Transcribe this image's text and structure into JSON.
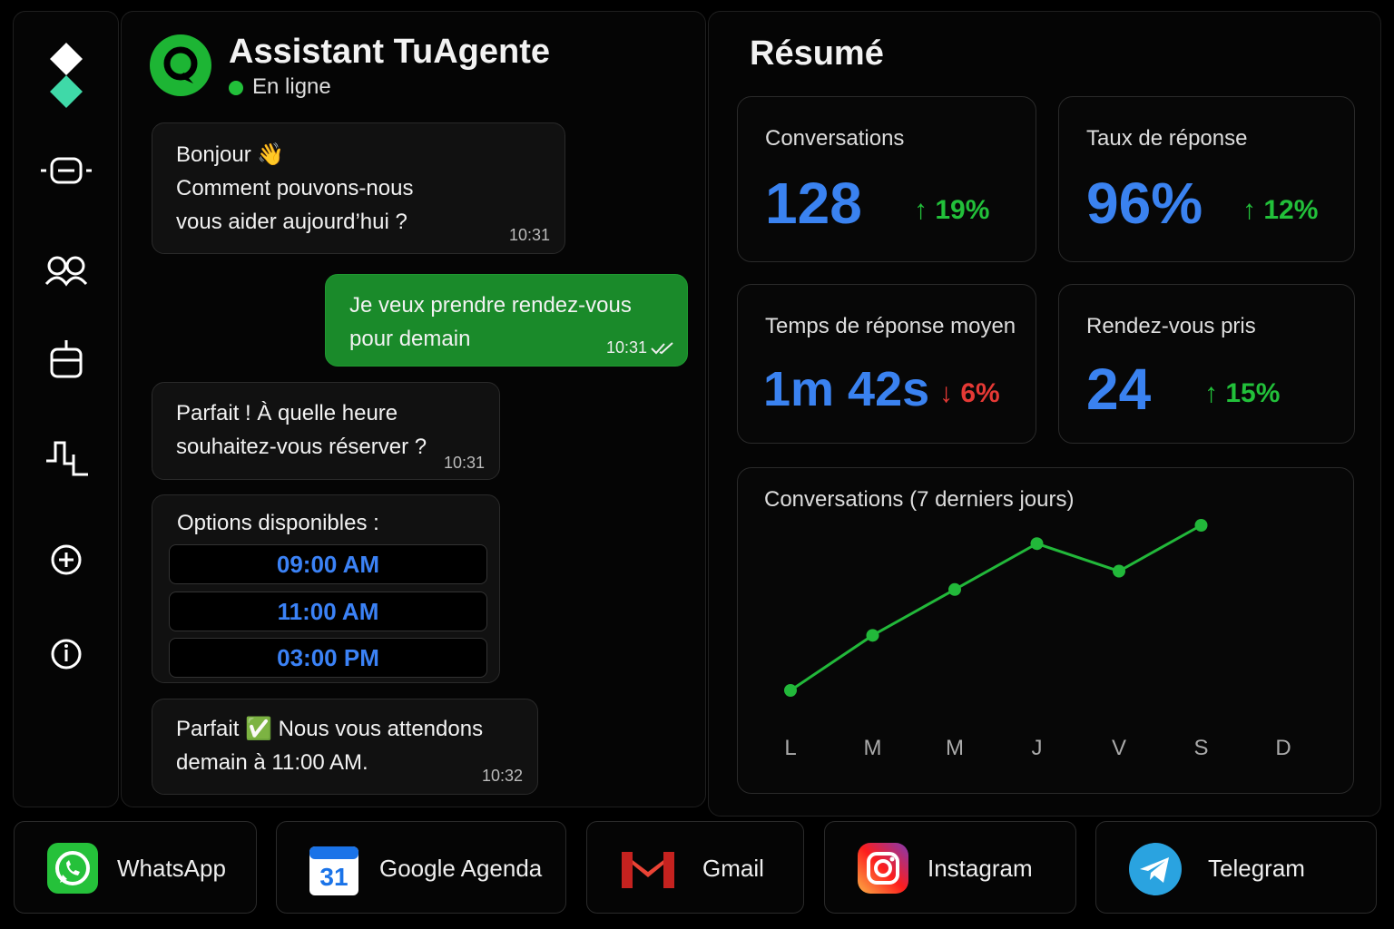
{
  "header": {
    "title": "Assistant TuAgente",
    "status": "En ligne"
  },
  "messages": [
    {
      "lines": [
        "Bonjour 👋",
        "Comment pouvons-nous",
        "vous aider aujourd’hui ?"
      ],
      "time": "10:31"
    },
    {
      "lines": [
        "Je veux prendre rendez-vous",
        "pour demain"
      ],
      "time": "10:31"
    },
    {
      "lines": [
        "Parfait ! À quelle heure",
        "souhaitez-vous réserver ?"
      ],
      "time": "10:31"
    },
    {
      "lines": [
        "Parfait ✅ Nous vous attendons",
        "demain à 11:00 AM."
      ],
      "time": "10:32"
    }
  ],
  "options": {
    "title": "Options disponibles :",
    "items": [
      "09:00 AM",
      "11:00 AM",
      "03:00 PM"
    ]
  },
  "summary": {
    "title": "Résumé",
    "kpis": [
      {
        "label": "Conversations",
        "value": "128",
        "change": "↑ 19%"
      },
      {
        "label": "Taux de réponse",
        "value": "96%",
        "change": "↑ 12%"
      },
      {
        "label": "Temps de réponse moyen",
        "value": "1m 42s",
        "change": "↓ 6%"
      },
      {
        "label": "Rendez-vous pris",
        "value": "24",
        "change": "↑ 15%"
      }
    ]
  },
  "chart_data": {
    "type": "line",
    "title": "Conversations (7 derniers jours)",
    "categories": [
      "L",
      "M",
      "M",
      "J",
      "V",
      "S",
      "D"
    ],
    "values": [
      10,
      16,
      21,
      26,
      23,
      28,
      null
    ],
    "color": "#22b83a"
  },
  "integrations": [
    "WhatsApp",
    "Google Agenda",
    "Gmail",
    "Instagram",
    "Telegram"
  ]
}
